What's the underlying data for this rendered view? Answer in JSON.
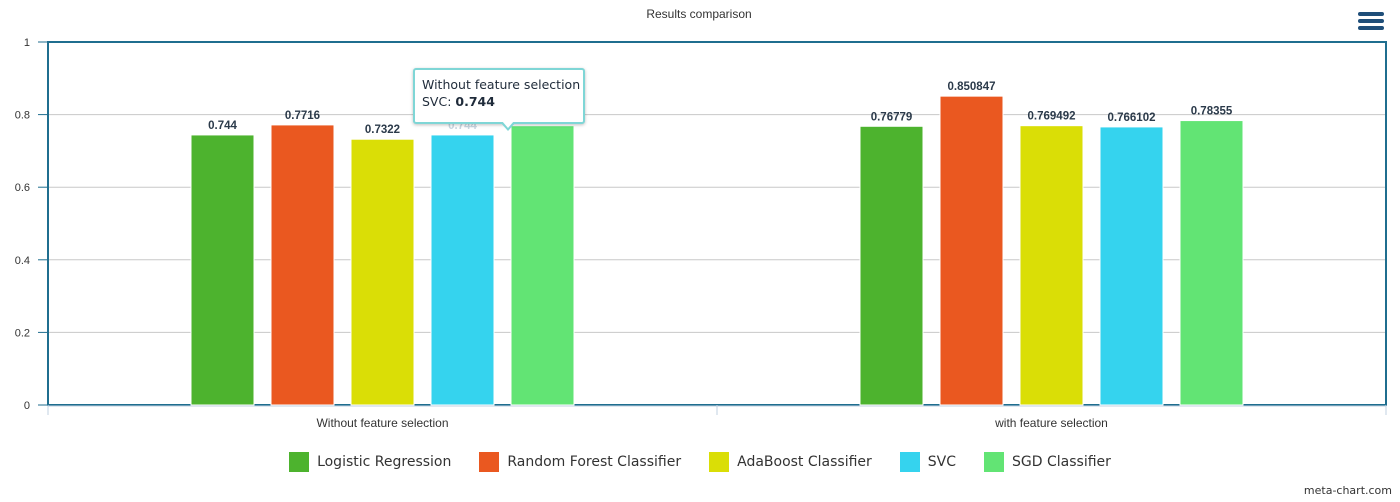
{
  "chart_data": {
    "type": "bar",
    "title": "Results comparison",
    "categories": [
      "Without feature selection",
      "with feature selection"
    ],
    "series": [
      {
        "name": "Logistic Regression",
        "color": "#4db32e",
        "values": [
          0.744,
          0.76779
        ],
        "labels": [
          "0.744",
          "0.76779"
        ]
      },
      {
        "name": "Random Forest Classifier",
        "color": "#ea5820",
        "values": [
          0.7716,
          0.850847
        ],
        "labels": [
          "0.7716",
          "0.850847"
        ]
      },
      {
        "name": "AdaBoost Classifier",
        "color": "#dade06",
        "values": [
          0.7322,
          0.769492
        ],
        "labels": [
          "0.7322",
          "0.769492"
        ]
      },
      {
        "name": "SVC",
        "color": "#35d3ee",
        "values": [
          0.744,
          0.766102
        ],
        "labels": [
          "0.744",
          "0.766102"
        ]
      },
      {
        "name": "SGD Classifier",
        "color": "#62e474",
        "values": [
          0.7694,
          0.78355
        ],
        "labels": [
          "0.7694",
          "0.78355"
        ]
      }
    ],
    "ylim": [
      0,
      1
    ],
    "yticks": [
      "0",
      "0.2",
      "0.4",
      "0.6",
      "0.8",
      "1"
    ],
    "grid": true,
    "legend_position": "bottom"
  },
  "tooltip": {
    "category": "Without feature selection",
    "series": "SVC: ",
    "value": "0.744"
  },
  "menu_icon": "hamburger-menu-icon",
  "credit": "meta-chart.com"
}
